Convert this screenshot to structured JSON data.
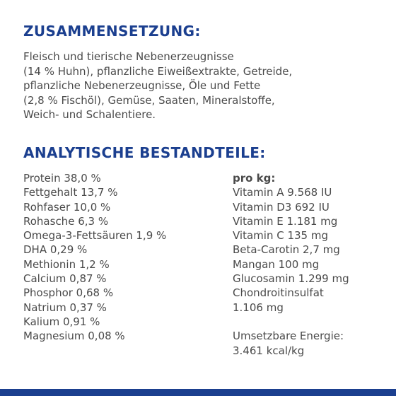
{
  "composition": {
    "heading": "ZUSAMMENSETZUNG:",
    "lines": [
      "Fleisch und tierische Nebenerzeugnisse",
      "(14 % Huhn), pflanzliche Eiweißextrakte, Getreide,",
      "pflanzliche Nebenerzeugnisse, Öle und Fette",
      "(2,8 % Fischöl), Gemüse, Saaten, Mineralstoffe,",
      "Weich- und Schalentiere."
    ]
  },
  "analytical": {
    "heading": "ANALYTISCHE BESTANDTEILE:",
    "left": [
      "Protein 38,0 %",
      "Fettgehalt 13,7 %",
      "Rohfaser 10,0 %",
      "Rohasche 6,3 %",
      "Omega-3-Fettsäuren 1,9 %",
      "DHA 0,29 %",
      "Methionin 1,2 %",
      "Calcium 0,87 %",
      "Phosphor 0,68 %",
      "Natrium 0,37 %",
      "Kalium 0,91 %",
      "Magnesium 0,08 %"
    ],
    "right_label": "pro kg:",
    "right": [
      "Vitamin A 9.568 IU",
      "Vitamin D3 692 IU",
      "Vitamin E 1.181 mg",
      "Vitamin C 135 mg",
      "Beta-Carotin 2,7 mg",
      "Mangan 100 mg",
      "Glucosamin 1.299 mg",
      "Chondroitinsulfat",
      "1.106 mg"
    ],
    "energy_label": "Umsetzbare Energie:",
    "energy_value": "3.461 kcal/kg"
  },
  "colors": {
    "heading": "#1b3f8f",
    "text": "#4a4a4a",
    "bar": "#1b3f8f"
  }
}
